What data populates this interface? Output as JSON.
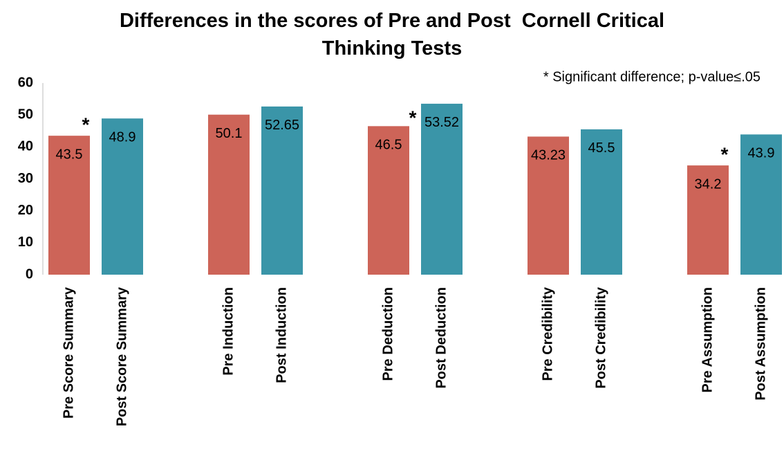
{
  "chart_data": {
    "type": "bar",
    "title": "Differences in the scores of Pre and Post  Cornell Critical Thinking Tests",
    "note": "* Significant difference; p-value≤.05",
    "categories": [
      "Pre Score Summary",
      "Post Score Summary",
      "Pre Induction",
      "Post Induction",
      "Pre Deduction",
      "Post Deduction",
      "Pre Credibility",
      "Post Credibility",
      "Pre Assumption",
      "Post Assumption"
    ],
    "values": [
      43.5,
      48.9,
      50.1,
      52.65,
      46.5,
      53.52,
      43.23,
      45.5,
      34.2,
      43.9
    ],
    "colors": [
      "#cd6458",
      "#3a95a8",
      "#cd6458",
      "#3a95a8",
      "#cd6458",
      "#3a95a8",
      "#cd6458",
      "#3a95a8",
      "#cd6458",
      "#3a95a8"
    ],
    "annotations": [
      {
        "text": "*",
        "category": "Pre Score Summary"
      },
      {
        "text": "*",
        "category": "Post Deduction"
      },
      {
        "text": "*",
        "category": "Pre Assumption"
      }
    ],
    "ylim": [
      0,
      60
    ],
    "yticks": [
      0,
      10,
      20,
      30,
      40,
      50,
      60
    ],
    "grid": false
  }
}
